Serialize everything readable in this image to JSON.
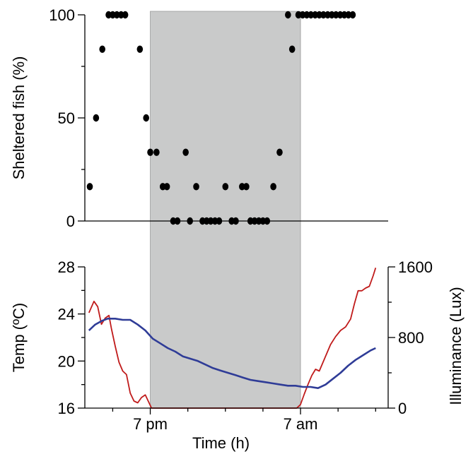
{
  "chart_data": [
    {
      "type": "scatter",
      "title": "",
      "xlabel": "",
      "ylabel": "Sheltered fish (%)",
      "ylim": [
        0,
        100
      ],
      "yticks": [
        0,
        50,
        100
      ],
      "grid": false,
      "dark_period": {
        "start": 19,
        "end": 31,
        "color": "#c9caca",
        "label": ""
      },
      "xlim": [
        14,
        38
      ],
      "series": [
        {
          "color": "#000000",
          "points": [
            {
              "x": 14.17,
              "y": 16.67
            },
            {
              "x": 14.67,
              "y": 50
            },
            {
              "x": 15.17,
              "y": 83.33
            },
            {
              "x": 15.67,
              "y": 100
            },
            {
              "x": 16.0,
              "y": 100
            },
            {
              "x": 16.33,
              "y": 100
            },
            {
              "x": 16.67,
              "y": 100
            },
            {
              "x": 17.0,
              "y": 100
            },
            {
              "x": 18.17,
              "y": 83.33
            },
            {
              "x": 18.67,
              "y": 50
            },
            {
              "x": 19.0,
              "y": 33.33
            },
            {
              "x": 19.5,
              "y": 33.33
            },
            {
              "x": 20.0,
              "y": 16.67
            },
            {
              "x": 20.33,
              "y": 16.67
            },
            {
              "x": 20.83,
              "y": 0
            },
            {
              "x": 21.17,
              "y": 0
            },
            {
              "x": 21.83,
              "y": 33.33
            },
            {
              "x": 22.17,
              "y": 0
            },
            {
              "x": 22.67,
              "y": 16.67
            },
            {
              "x": 23.17,
              "y": 0
            },
            {
              "x": 23.5,
              "y": 0
            },
            {
              "x": 23.83,
              "y": 0
            },
            {
              "x": 24.17,
              "y": 0
            },
            {
              "x": 24.5,
              "y": 0
            },
            {
              "x": 25.0,
              "y": 16.67
            },
            {
              "x": 25.5,
              "y": 0
            },
            {
              "x": 25.83,
              "y": 0
            },
            {
              "x": 26.33,
              "y": 16.67
            },
            {
              "x": 26.67,
              "y": 16.67
            },
            {
              "x": 27.0,
              "y": 0
            },
            {
              "x": 27.33,
              "y": 0
            },
            {
              "x": 27.67,
              "y": 0
            },
            {
              "x": 28.0,
              "y": 0
            },
            {
              "x": 28.33,
              "y": 0
            },
            {
              "x": 28.83,
              "y": 16.67
            },
            {
              "x": 29.33,
              "y": 33.33
            },
            {
              "x": 30.0,
              "y": 100
            },
            {
              "x": 30.33,
              "y": 83.33
            },
            {
              "x": 30.83,
              "y": 100
            },
            {
              "x": 31.17,
              "y": 100
            },
            {
              "x": 31.5,
              "y": 100
            },
            {
              "x": 31.83,
              "y": 100
            },
            {
              "x": 32.17,
              "y": 100
            },
            {
              "x": 32.5,
              "y": 100
            },
            {
              "x": 32.83,
              "y": 100
            },
            {
              "x": 33.17,
              "y": 100
            },
            {
              "x": 33.5,
              "y": 100
            },
            {
              "x": 33.83,
              "y": 100
            },
            {
              "x": 34.17,
              "y": 100
            },
            {
              "x": 34.5,
              "y": 100
            },
            {
              "x": 34.83,
              "y": 100
            },
            {
              "x": 35.17,
              "y": 100
            }
          ]
        }
      ]
    },
    {
      "type": "line",
      "title": "",
      "xlabel": "Time (h)",
      "ylabel": "Temp (ºC)",
      "ylabel_right": "Illuminance (Lux)",
      "xlim": [
        14,
        38
      ],
      "xticks": [
        {
          "x": 19,
          "label": "7 pm"
        },
        {
          "x": 31,
          "label": "7 am"
        }
      ],
      "ylim": [
        16,
        28
      ],
      "yticks": [
        16,
        20,
        24,
        28
      ],
      "ylim_right": [
        0,
        1600
      ],
      "yticks_right": [
        0,
        800,
        1600
      ],
      "grid": false,
      "dark_period": {
        "start": 19,
        "end": 31,
        "color": "#c9caca",
        "label": ""
      },
      "series": [
        {
          "axis": "left",
          "color": "#2f3c97",
          "points": [
            {
              "x": 14.1,
              "y": 22.6
            },
            {
              "x": 14.6,
              "y": 23.1
            },
            {
              "x": 15.1,
              "y": 23.4
            },
            {
              "x": 15.6,
              "y": 23.6
            },
            {
              "x": 16.2,
              "y": 23.6
            },
            {
              "x": 16.8,
              "y": 23.5
            },
            {
              "x": 17.4,
              "y": 23.5
            },
            {
              "x": 18.0,
              "y": 23.1
            },
            {
              "x": 18.6,
              "y": 22.6
            },
            {
              "x": 19.2,
              "y": 21.9
            },
            {
              "x": 19.8,
              "y": 21.5
            },
            {
              "x": 20.4,
              "y": 21.1
            },
            {
              "x": 21.0,
              "y": 20.8
            },
            {
              "x": 21.6,
              "y": 20.4
            },
            {
              "x": 22.2,
              "y": 20.2
            },
            {
              "x": 22.8,
              "y": 20.0
            },
            {
              "x": 23.4,
              "y": 19.7
            },
            {
              "x": 24.0,
              "y": 19.4
            },
            {
              "x": 24.6,
              "y": 19.2
            },
            {
              "x": 25.2,
              "y": 19.0
            },
            {
              "x": 25.8,
              "y": 18.8
            },
            {
              "x": 26.4,
              "y": 18.6
            },
            {
              "x": 27.0,
              "y": 18.4
            },
            {
              "x": 27.6,
              "y": 18.3
            },
            {
              "x": 28.2,
              "y": 18.2
            },
            {
              "x": 28.8,
              "y": 18.1
            },
            {
              "x": 29.4,
              "y": 18.0
            },
            {
              "x": 30.0,
              "y": 17.9
            },
            {
              "x": 30.6,
              "y": 17.9
            },
            {
              "x": 31.2,
              "y": 17.8
            },
            {
              "x": 31.8,
              "y": 17.8
            },
            {
              "x": 32.4,
              "y": 17.7
            },
            {
              "x": 33.0,
              "y": 18.0
            },
            {
              "x": 33.6,
              "y": 18.5
            },
            {
              "x": 34.2,
              "y": 19.0
            },
            {
              "x": 34.8,
              "y": 19.6
            },
            {
              "x": 35.4,
              "y": 20.1
            },
            {
              "x": 36.0,
              "y": 20.5
            },
            {
              "x": 36.6,
              "y": 20.9
            },
            {
              "x": 37.0,
              "y": 21.1
            }
          ]
        },
        {
          "axis": "right",
          "color": "#c01b1b",
          "points": [
            {
              "x": 14.1,
              "y": 1080
            },
            {
              "x": 14.5,
              "y": 1210
            },
            {
              "x": 14.8,
              "y": 1150
            },
            {
              "x": 15.1,
              "y": 950
            },
            {
              "x": 15.4,
              "y": 1020
            },
            {
              "x": 15.7,
              "y": 1050
            },
            {
              "x": 15.9,
              "y": 900
            },
            {
              "x": 16.2,
              "y": 700
            },
            {
              "x": 16.5,
              "y": 520
            },
            {
              "x": 16.8,
              "y": 420
            },
            {
              "x": 17.1,
              "y": 380
            },
            {
              "x": 17.4,
              "y": 170
            },
            {
              "x": 17.7,
              "y": 80
            },
            {
              "x": 18.0,
              "y": 60
            },
            {
              "x": 18.3,
              "y": 120
            },
            {
              "x": 18.6,
              "y": 150
            },
            {
              "x": 18.9,
              "y": 60
            },
            {
              "x": 19.1,
              "y": 0
            },
            {
              "x": 20.0,
              "y": 0
            },
            {
              "x": 24.0,
              "y": 0
            },
            {
              "x": 28.0,
              "y": 0
            },
            {
              "x": 30.7,
              "y": 0
            },
            {
              "x": 31.0,
              "y": 40
            },
            {
              "x": 31.3,
              "y": 160
            },
            {
              "x": 31.6,
              "y": 270
            },
            {
              "x": 31.9,
              "y": 370
            },
            {
              "x": 32.2,
              "y": 440
            },
            {
              "x": 32.5,
              "y": 420
            },
            {
              "x": 32.8,
              "y": 520
            },
            {
              "x": 33.1,
              "y": 620
            },
            {
              "x": 33.4,
              "y": 720
            },
            {
              "x": 33.8,
              "y": 810
            },
            {
              "x": 34.2,
              "y": 880
            },
            {
              "x": 34.6,
              "y": 920
            },
            {
              "x": 35.0,
              "y": 1010
            },
            {
              "x": 35.3,
              "y": 1180
            },
            {
              "x": 35.6,
              "y": 1330
            },
            {
              "x": 35.9,
              "y": 1330
            },
            {
              "x": 36.2,
              "y": 1360
            },
            {
              "x": 36.5,
              "y": 1380
            },
            {
              "x": 36.8,
              "y": 1500
            },
            {
              "x": 37.0,
              "y": 1590
            }
          ]
        }
      ]
    }
  ]
}
